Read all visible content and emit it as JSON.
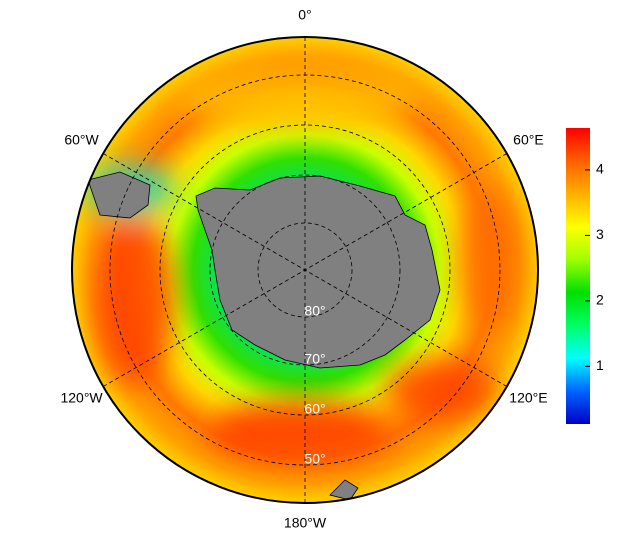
{
  "map": {
    "lon_labels": [
      "0°",
      "60°E",
      "120°E",
      "180°W",
      "120°W",
      "60°W"
    ],
    "lat_labels": [
      "80°",
      "70°",
      "60°",
      "50°"
    ],
    "colorbar": {
      "lim": [
        0.12,
        4.64
      ],
      "ticks": [
        1,
        2,
        3,
        4
      ],
      "colors": [
        "#0000c8",
        "#0064ff",
        "#00ffff",
        "#00ff64",
        "#00e000",
        "#a0ff00",
        "#ffff00",
        "#ffb000",
        "#ff6000",
        "#ff0000"
      ]
    }
  }
}
